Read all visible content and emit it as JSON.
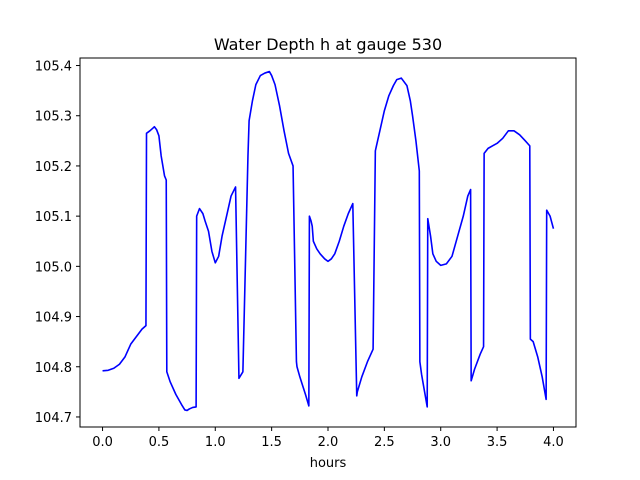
{
  "chart_data": {
    "type": "line",
    "title": "Water Depth h at gauge 530",
    "xlabel": "hours",
    "ylabel": "",
    "xlim": [
      -0.2,
      4.2
    ],
    "ylim": [
      104.68,
      105.415
    ],
    "xticks": [
      0.0,
      0.5,
      1.0,
      1.5,
      2.0,
      2.5,
      3.0,
      3.5,
      4.0
    ],
    "xtick_labels": [
      "0.0",
      "0.5",
      "1.0",
      "1.5",
      "2.0",
      "2.5",
      "3.0",
      "3.5",
      "4.0"
    ],
    "yticks": [
      104.7,
      104.8,
      104.9,
      105.0,
      105.1,
      105.2,
      105.3,
      105.4
    ],
    "ytick_labels": [
      "104.7",
      "104.8",
      "104.9",
      "105.0",
      "105.1",
      "105.2",
      "105.3",
      "105.4"
    ],
    "grid": false,
    "series": [
      {
        "color": "#0000ff",
        "x": [
          0.0,
          0.05,
          0.1,
          0.15,
          0.2,
          0.25,
          0.3,
          0.35,
          0.385,
          0.39,
          0.42,
          0.445,
          0.46,
          0.48,
          0.5,
          0.52,
          0.55,
          0.565,
          0.57,
          0.6,
          0.65,
          0.7,
          0.73,
          0.75,
          0.77,
          0.8,
          0.83,
          0.835,
          0.86,
          0.89,
          0.91,
          0.94,
          0.97,
          1.0,
          1.03,
          1.06,
          1.1,
          1.14,
          1.18,
          1.21,
          1.245,
          1.25,
          1.29,
          1.3,
          1.33,
          1.36,
          1.4,
          1.44,
          1.48,
          1.5,
          1.53,
          1.57,
          1.61,
          1.65,
          1.69,
          1.72,
          1.725,
          1.75,
          1.8,
          1.83,
          1.835,
          1.85,
          1.86,
          1.87,
          1.9,
          1.93,
          1.97,
          2.0,
          2.03,
          2.06,
          2.1,
          2.14,
          2.18,
          2.22,
          2.255,
          2.26,
          2.3,
          2.35,
          2.4,
          2.42,
          2.43,
          2.46,
          2.5,
          2.54,
          2.58,
          2.61,
          2.65,
          2.7,
          2.73,
          2.75,
          2.78,
          2.81,
          2.815,
          2.83,
          2.88,
          2.885,
          2.91,
          2.93,
          2.96,
          3.0,
          3.05,
          3.1,
          3.15,
          3.2,
          3.24,
          3.265,
          3.27,
          3.3,
          3.35,
          3.38,
          3.385,
          3.42,
          3.46,
          3.5,
          3.55,
          3.6,
          3.65,
          3.7,
          3.75,
          3.79,
          3.795,
          3.82,
          3.86,
          3.9,
          3.935,
          3.94,
          3.97,
          4.0
        ],
        "y": [
          104.792,
          104.793,
          104.797,
          104.805,
          104.82,
          104.845,
          104.86,
          104.875,
          104.882,
          105.265,
          105.27,
          105.275,
          105.278,
          105.272,
          105.26,
          105.22,
          105.18,
          105.172,
          104.79,
          104.77,
          104.745,
          104.725,
          104.714,
          104.713,
          104.716,
          104.719,
          104.72,
          105.1,
          105.115,
          105.105,
          105.09,
          105.07,
          105.03,
          105.007,
          105.02,
          105.06,
          105.1,
          105.14,
          105.158,
          104.777,
          104.79,
          104.838,
          105.22,
          105.29,
          105.33,
          105.362,
          105.38,
          105.385,
          105.388,
          105.38,
          105.362,
          105.32,
          105.27,
          105.225,
          105.2,
          104.81,
          104.8,
          104.78,
          104.745,
          104.722,
          105.1,
          105.09,
          105.08,
          105.05,
          105.035,
          105.025,
          105.015,
          105.01,
          105.015,
          105.025,
          105.05,
          105.08,
          105.105,
          105.125,
          104.742,
          104.75,
          104.78,
          104.81,
          104.835,
          105.23,
          105.24,
          105.27,
          105.31,
          105.34,
          105.36,
          105.372,
          105.375,
          105.36,
          105.33,
          105.3,
          105.25,
          105.19,
          104.81,
          104.785,
          104.72,
          105.095,
          105.06,
          105.025,
          105.01,
          105.002,
          105.005,
          105.02,
          105.06,
          105.1,
          105.14,
          105.153,
          104.772,
          104.795,
          104.825,
          104.84,
          105.225,
          105.235,
          105.24,
          105.245,
          105.255,
          105.27,
          105.27,
          105.262,
          105.25,
          105.24,
          104.855,
          104.85,
          104.82,
          104.78,
          104.735,
          105.112,
          105.1,
          105.075
        ]
      }
    ]
  }
}
